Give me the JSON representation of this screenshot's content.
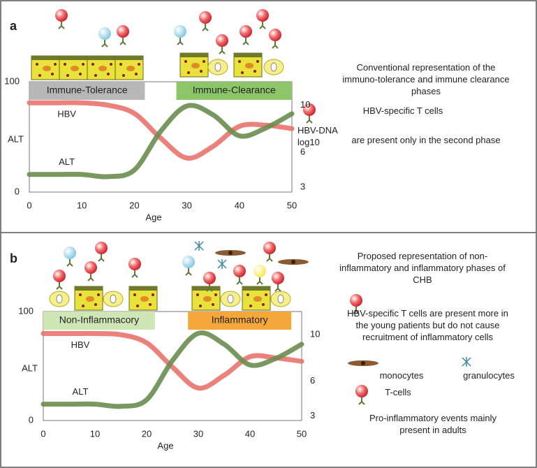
{
  "chart_data": [
    {
      "type": "line",
      "panel": "a",
      "x_label": "Age",
      "y_label": "ALT",
      "y2_label": "HBV-DNA log10",
      "x": [
        0,
        5,
        10,
        15,
        20,
        25,
        30,
        35,
        40,
        45,
        50
      ],
      "xlim": [
        0,
        50
      ],
      "xticks": [
        0,
        10,
        20,
        30,
        40,
        50
      ],
      "ylim": [
        0,
        100
      ],
      "yticks": [
        0,
        100
      ],
      "y2lim": [
        2.6,
        12
      ],
      "y2ticks": [
        3,
        6,
        10
      ],
      "series": [
        {
          "name": "HBV",
          "color": "#e9736c",
          "axis": "y2",
          "values": [
            10.2,
            10.2,
            10.2,
            10,
            9.3,
            7.2,
            5.5,
            6.5,
            8.2,
            8.3,
            8
          ]
        },
        {
          "name": "ALT",
          "color": "#6a8d4f",
          "values": [
            16,
            16,
            16,
            14,
            20,
            55,
            78,
            70,
            51,
            58,
            71
          ]
        }
      ],
      "phases": [
        {
          "label": "Immune-Tolerance",
          "start": 0,
          "end": 22,
          "color": "#b7b7b7"
        },
        {
          "label": "Immune-Clearance",
          "start": 28,
          "end": 50,
          "color": "#8cc668"
        }
      ],
      "annotations": [
        "Conventional representation of the immuno-tolerance and immune clearance phases",
        "HBV-specific T cells",
        "are present only in the second phase"
      ]
    },
    {
      "type": "line",
      "panel": "b",
      "x_label": "Age",
      "y_label": "ALT",
      "x": [
        0,
        5,
        10,
        15,
        20,
        25,
        30,
        35,
        40,
        45,
        50
      ],
      "xlim": [
        0,
        50
      ],
      "xticks": [
        0,
        10,
        20,
        30,
        40,
        50
      ],
      "ylim": [
        0,
        100
      ],
      "yticks": [
        0,
        100
      ],
      "y2lim": [
        2.6,
        12
      ],
      "y2ticks": [
        3,
        6,
        10
      ],
      "series": [
        {
          "name": "HBV",
          "color": "#e9736c",
          "axis": "y2",
          "values": [
            10.1,
            10.1,
            10.1,
            10,
            9.3,
            7.2,
            5.4,
            6.5,
            8.1,
            8,
            7.7
          ]
        },
        {
          "name": "ALT",
          "color": "#6a8d4f",
          "values": [
            15,
            15,
            15,
            13,
            19,
            55,
            80,
            70,
            51,
            57,
            70
          ]
        }
      ],
      "phases": [
        {
          "label": "Non-Inflammacory",
          "start": 0,
          "end": 21.6,
          "color": "#cfe6b6"
        },
        {
          "label": "Inflammatory",
          "start": 28,
          "end": 48,
          "color": "#f5a73a"
        }
      ],
      "annotations": [
        "Proposed representation of non-inflammatory and inflammatory phases of CHB",
        "HBV-specific T cells are present more in the young patients but do not cause recruitment of inflammatory cells",
        "monocytes",
        "granulocytes",
        "T-cells",
        "Pro-inflammatory events mainly present in adults"
      ]
    }
  ]
}
